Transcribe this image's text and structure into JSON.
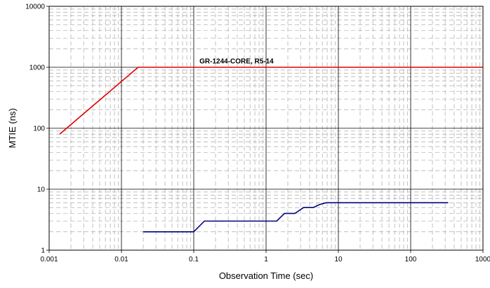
{
  "chart_data": {
    "type": "line",
    "xscale": "log",
    "yscale": "log",
    "xlim": [
      0.001,
      1000
    ],
    "ylim": [
      1,
      10000
    ],
    "xlabel": "Observation Time (sec)",
    "ylabel": "MTIE (ns)",
    "x_tick_labels": [
      "0.001",
      "0.01",
      "0.1",
      "1",
      "10",
      "100",
      "1000"
    ],
    "y_tick_labels": [
      "1",
      "10",
      "100",
      "1000",
      "10000"
    ],
    "grid": true,
    "series": [
      {
        "name": "GR-1244-CORE, R5-14",
        "color": "#e00000",
        "x": [
          0.0014,
          0.017,
          1000
        ],
        "y": [
          80,
          1000,
          1000
        ]
      },
      {
        "name": "",
        "color": "#00007f",
        "x": [
          0.02,
          0.1,
          0.14,
          1.0,
          1.4,
          1.8,
          2.5,
          3.3,
          4.5,
          5.5,
          6.8,
          330
        ],
        "y": [
          2,
          2,
          3,
          3,
          3,
          4,
          4,
          5,
          5,
          5.6,
          6,
          6
        ]
      }
    ],
    "annotations": [
      {
        "text": "GR-1244-CORE, R5-14",
        "x": 0.12,
        "y": 1150
      }
    ]
  }
}
